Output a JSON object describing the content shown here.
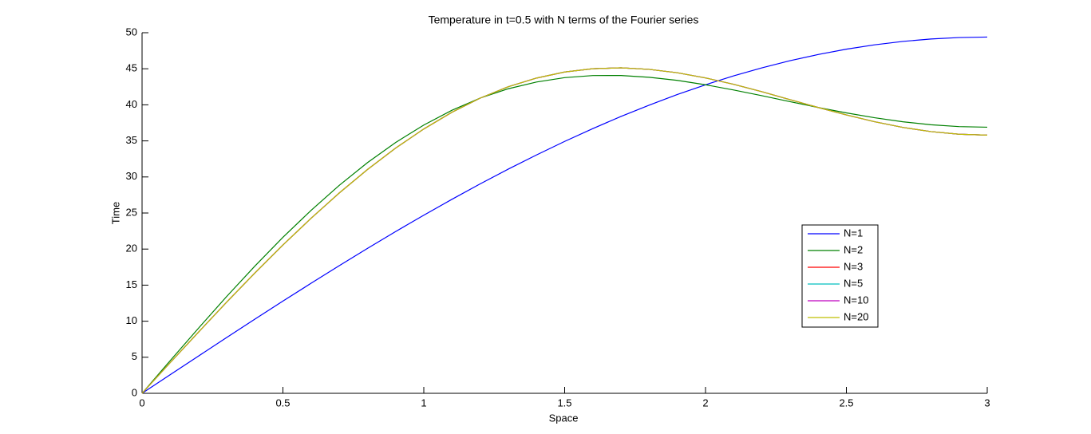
{
  "chart_data": {
    "type": "line",
    "title": "Temperature in t=0.5 with N terms of the Fourier series",
    "xlabel": "Space",
    "ylabel": "Time",
    "x": [
      0,
      0.1,
      0.2,
      0.3,
      0.4,
      0.5,
      0.6,
      0.7,
      0.8,
      0.9,
      1,
      1.1,
      1.2,
      1.3,
      1.4,
      1.5,
      1.6,
      1.7,
      1.8,
      1.9,
      2,
      2.1,
      2.2,
      2.3,
      2.4,
      2.5,
      2.6,
      2.7,
      2.8,
      2.9,
      3
    ],
    "series": [
      {
        "name": "N=1",
        "color": "#0000ff",
        "values": [
          0,
          2.58,
          5.16,
          7.73,
          10.27,
          12.79,
          15.26,
          17.7,
          20.09,
          22.43,
          24.7,
          26.9,
          29.04,
          31.09,
          33.05,
          34.93,
          36.71,
          38.39,
          39.96,
          41.43,
          42.78,
          44.02,
          45.13,
          46.12,
          46.98,
          47.72,
          48.32,
          48.79,
          49.13,
          49.33,
          49.4
        ]
      },
      {
        "name": "N=2",
        "color": "#008000",
        "values": [
          0,
          4.54,
          9.02,
          13.41,
          17.62,
          21.63,
          25.37,
          28.84,
          31.98,
          34.78,
          37.2,
          39.25,
          40.93,
          42.23,
          43.16,
          43.77,
          44.06,
          44.07,
          43.82,
          43.39,
          42.78,
          42.06,
          41.27,
          40.44,
          39.63,
          38.88,
          38.21,
          37.65,
          37.24,
          36.98,
          36.9
        ]
      },
      {
        "name": "N=3",
        "color": "#ff0000",
        "values": [
          0,
          4.26,
          8.47,
          12.63,
          16.67,
          20.57,
          24.27,
          27.78,
          31.03,
          34.0,
          36.65,
          38.97,
          40.93,
          42.51,
          43.71,
          44.55,
          45.01,
          45.13,
          44.92,
          44.45,
          43.73,
          42.84,
          41.82,
          40.72,
          39.63,
          38.6,
          37.66,
          36.87,
          36.29,
          35.92,
          35.8
        ]
      },
      {
        "name": "N=5",
        "color": "#00bfbf",
        "values": [
          0,
          4.26,
          8.47,
          12.63,
          16.67,
          20.57,
          24.27,
          27.78,
          31.03,
          34.0,
          36.65,
          38.97,
          40.93,
          42.51,
          43.71,
          44.55,
          45.01,
          45.13,
          44.92,
          44.45,
          43.73,
          42.84,
          41.82,
          40.72,
          39.63,
          38.6,
          37.66,
          36.87,
          36.29,
          35.92,
          35.8
        ]
      },
      {
        "name": "N=10",
        "color": "#bf00bf",
        "values": [
          0,
          4.26,
          8.47,
          12.63,
          16.67,
          20.57,
          24.27,
          27.78,
          31.03,
          34.0,
          36.65,
          38.97,
          40.93,
          42.51,
          43.71,
          44.55,
          45.01,
          45.13,
          44.92,
          44.45,
          43.73,
          42.84,
          41.82,
          40.72,
          39.63,
          38.6,
          37.66,
          36.87,
          36.29,
          35.92,
          35.8
        ]
      },
      {
        "name": "N=20",
        "color": "#bfbf00",
        "values": [
          0,
          4.26,
          8.47,
          12.63,
          16.67,
          20.57,
          24.27,
          27.78,
          31.03,
          34.0,
          36.65,
          38.97,
          40.93,
          42.51,
          43.71,
          44.55,
          45.01,
          45.13,
          44.92,
          44.45,
          43.73,
          42.84,
          41.82,
          40.72,
          39.63,
          38.6,
          37.66,
          36.87,
          36.29,
          35.92,
          35.8
        ]
      }
    ],
    "xlim": [
      0,
      3
    ],
    "xticks": [
      0,
      0.5,
      1,
      1.5,
      2,
      2.5,
      3
    ],
    "ylim": [
      0,
      50
    ],
    "yticks": [
      0,
      5,
      10,
      15,
      20,
      25,
      30,
      35,
      40,
      45,
      50
    ],
    "grid": false,
    "legend": "east"
  }
}
